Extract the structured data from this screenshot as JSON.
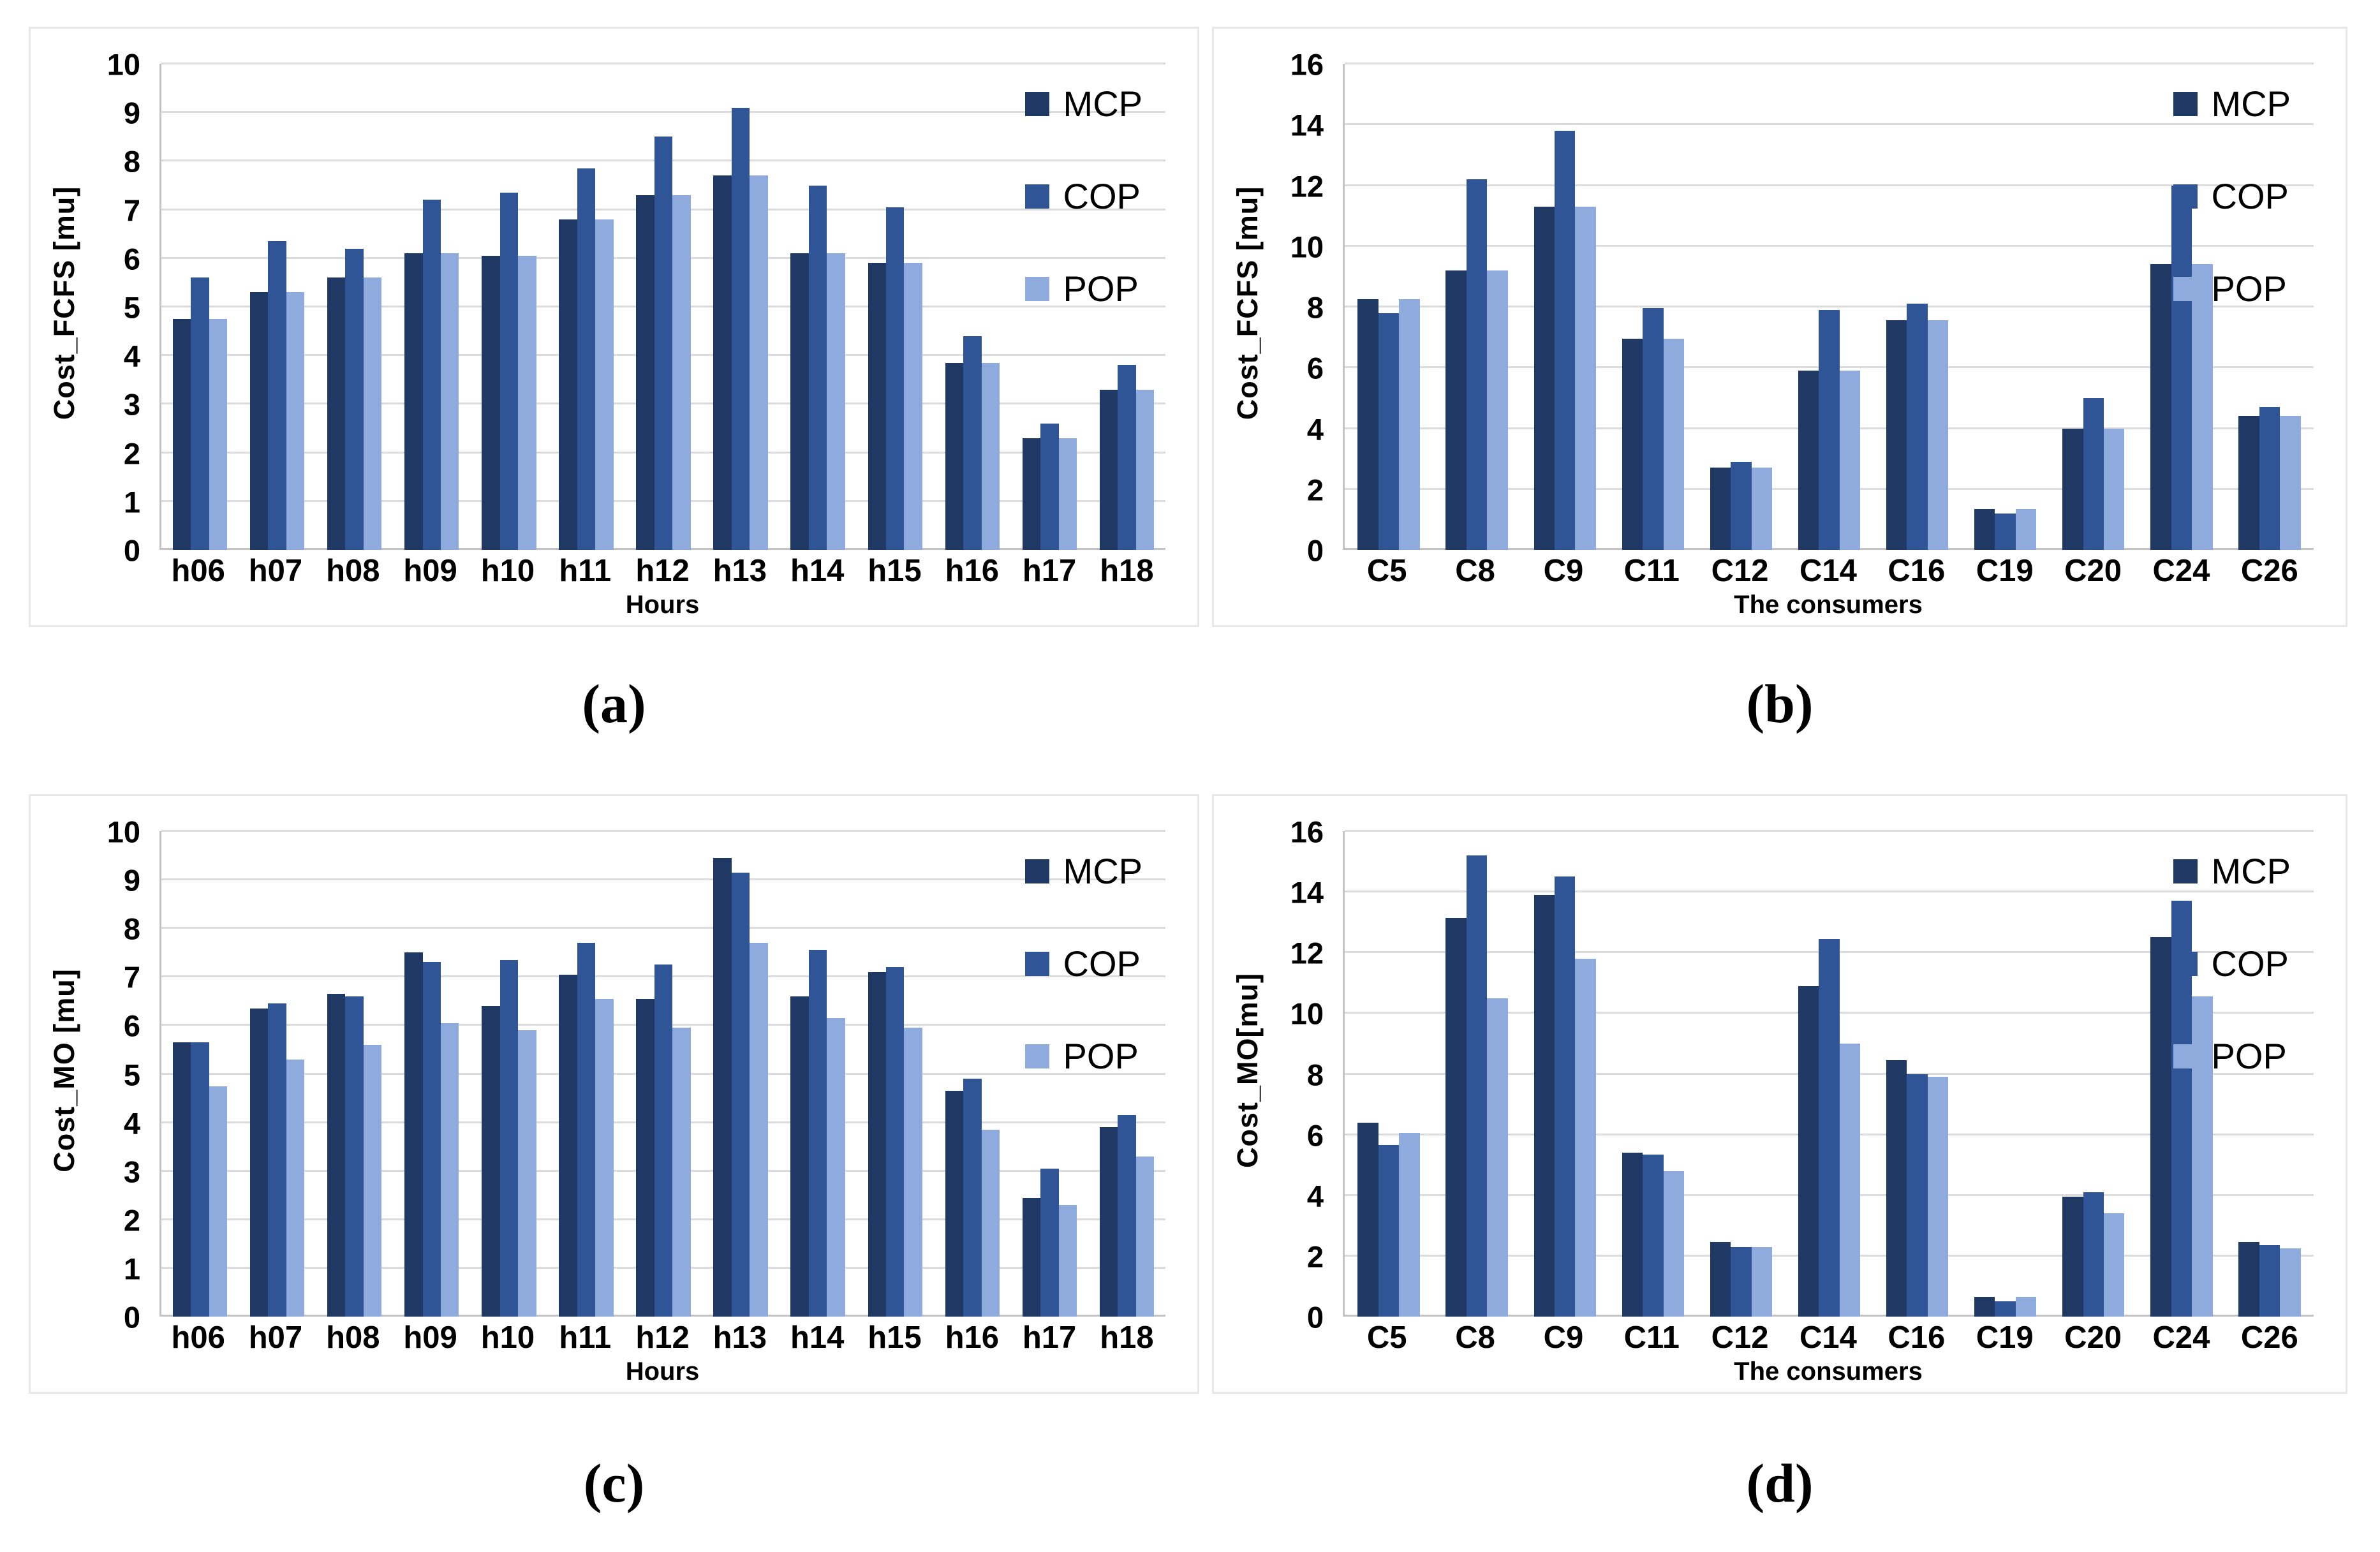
{
  "figure": {
    "captions": [
      "(a)",
      "(b)",
      "(c)",
      "(d)"
    ]
  },
  "colors": {
    "mcp": "#1f3864",
    "cop": "#2f5597",
    "pop": "#8faadc",
    "gridline": "#dcdcdc",
    "axis": "#c3c3c3"
  },
  "legend_labels": [
    "MCP",
    "COP",
    "POP"
  ],
  "chart_data": [
    {
      "id": "a",
      "type": "bar",
      "title": "",
      "ylabel": "Cost_FCFS [mu]",
      "xlabel": "Hours",
      "ylim": [
        0,
        10
      ],
      "ytick_step": 1,
      "grid": true,
      "legend_position": "top-right-inside",
      "categories": [
        "h06",
        "h07",
        "h08",
        "h09",
        "h10",
        "h11",
        "h12",
        "h13",
        "h14",
        "h15",
        "h16",
        "h17",
        "h18"
      ],
      "series": [
        {
          "name": "MCP",
          "color": "#1f3864",
          "values": [
            4.75,
            5.3,
            5.6,
            6.1,
            6.05,
            6.8,
            7.3,
            7.7,
            6.1,
            5.9,
            3.85,
            2.3,
            3.3
          ]
        },
        {
          "name": "COP",
          "color": "#2f5597",
          "values": [
            5.6,
            6.35,
            6.2,
            7.2,
            7.35,
            7.85,
            8.5,
            9.1,
            7.5,
            7.05,
            4.4,
            2.6,
            3.8
          ]
        },
        {
          "name": "POP",
          "color": "#8faadc",
          "values": [
            4.75,
            5.3,
            5.6,
            6.1,
            6.05,
            6.8,
            7.3,
            7.7,
            6.1,
            5.9,
            3.85,
            2.3,
            3.3
          ]
        }
      ]
    },
    {
      "id": "b",
      "type": "bar",
      "title": "",
      "ylabel": "Cost_FCFS [mu]",
      "xlabel": "The consumers",
      "ylim": [
        0,
        16
      ],
      "ytick_step": 2,
      "grid": true,
      "legend_position": "top-right-inside",
      "categories": [
        "C5",
        "C8",
        "C9",
        "C11",
        "C12",
        "C14",
        "C16",
        "C19",
        "C20",
        "C24",
        "C26"
      ],
      "series": [
        {
          "name": "MCP",
          "color": "#1f3864",
          "values": [
            8.25,
            9.2,
            11.3,
            6.95,
            2.7,
            5.9,
            7.55,
            1.35,
            4.0,
            9.4,
            4.4
          ]
        },
        {
          "name": "COP",
          "color": "#2f5597",
          "values": [
            7.8,
            12.2,
            13.8,
            7.95,
            2.9,
            7.9,
            8.1,
            1.2,
            5.0,
            12.0,
            4.7
          ]
        },
        {
          "name": "POP",
          "color": "#8faadc",
          "values": [
            8.25,
            9.2,
            11.3,
            6.95,
            2.7,
            5.9,
            7.55,
            1.35,
            4.0,
            9.4,
            4.4
          ]
        }
      ]
    },
    {
      "id": "c",
      "type": "bar",
      "title": "",
      "ylabel": "Cost_MO [mu]",
      "xlabel": "Hours",
      "ylim": [
        0,
        10
      ],
      "ytick_step": 1,
      "grid": true,
      "legend_position": "top-right-inside",
      "categories": [
        "h06",
        "h07",
        "h08",
        "h09",
        "h10",
        "h11",
        "h12",
        "h13",
        "h14",
        "h15",
        "h16",
        "h17",
        "h18"
      ],
      "series": [
        {
          "name": "MCP",
          "color": "#1f3864",
          "values": [
            5.65,
            6.35,
            6.65,
            7.5,
            6.4,
            7.05,
            6.55,
            9.45,
            6.6,
            7.1,
            4.65,
            2.45,
            3.9
          ]
        },
        {
          "name": "COP",
          "color": "#2f5597",
          "values": [
            5.65,
            6.45,
            6.6,
            7.3,
            7.35,
            7.7,
            7.25,
            9.15,
            7.55,
            7.2,
            4.9,
            3.05,
            4.15
          ]
        },
        {
          "name": "POP",
          "color": "#8faadc",
          "values": [
            4.75,
            5.3,
            5.6,
            6.05,
            5.9,
            6.55,
            5.95,
            7.7,
            6.15,
            5.95,
            3.85,
            2.3,
            3.3
          ]
        }
      ]
    },
    {
      "id": "d",
      "type": "bar",
      "title": "",
      "ylabel": "Cost_MO[mu]",
      "xlabel": "The consumers",
      "ylim": [
        0,
        16
      ],
      "ytick_step": 2,
      "grid": true,
      "legend_position": "top-right-inside",
      "categories": [
        "C5",
        "C8",
        "C9",
        "C11",
        "C12",
        "C14",
        "C16",
        "C19",
        "C20",
        "C24",
        "C26"
      ],
      "series": [
        {
          "name": "MCP",
          "color": "#1f3864",
          "values": [
            6.4,
            13.15,
            13.9,
            5.4,
            2.45,
            10.9,
            8.45,
            0.65,
            3.95,
            12.5,
            2.45
          ]
        },
        {
          "name": "COP",
          "color": "#2f5597",
          "values": [
            5.65,
            15.2,
            14.5,
            5.35,
            2.3,
            12.45,
            8.0,
            0.5,
            4.1,
            13.7,
            2.35
          ]
        },
        {
          "name": "POP",
          "color": "#8faadc",
          "values": [
            6.05,
            10.5,
            11.8,
            4.8,
            2.3,
            9.0,
            7.9,
            0.65,
            3.4,
            10.55,
            2.25
          ]
        }
      ]
    }
  ]
}
